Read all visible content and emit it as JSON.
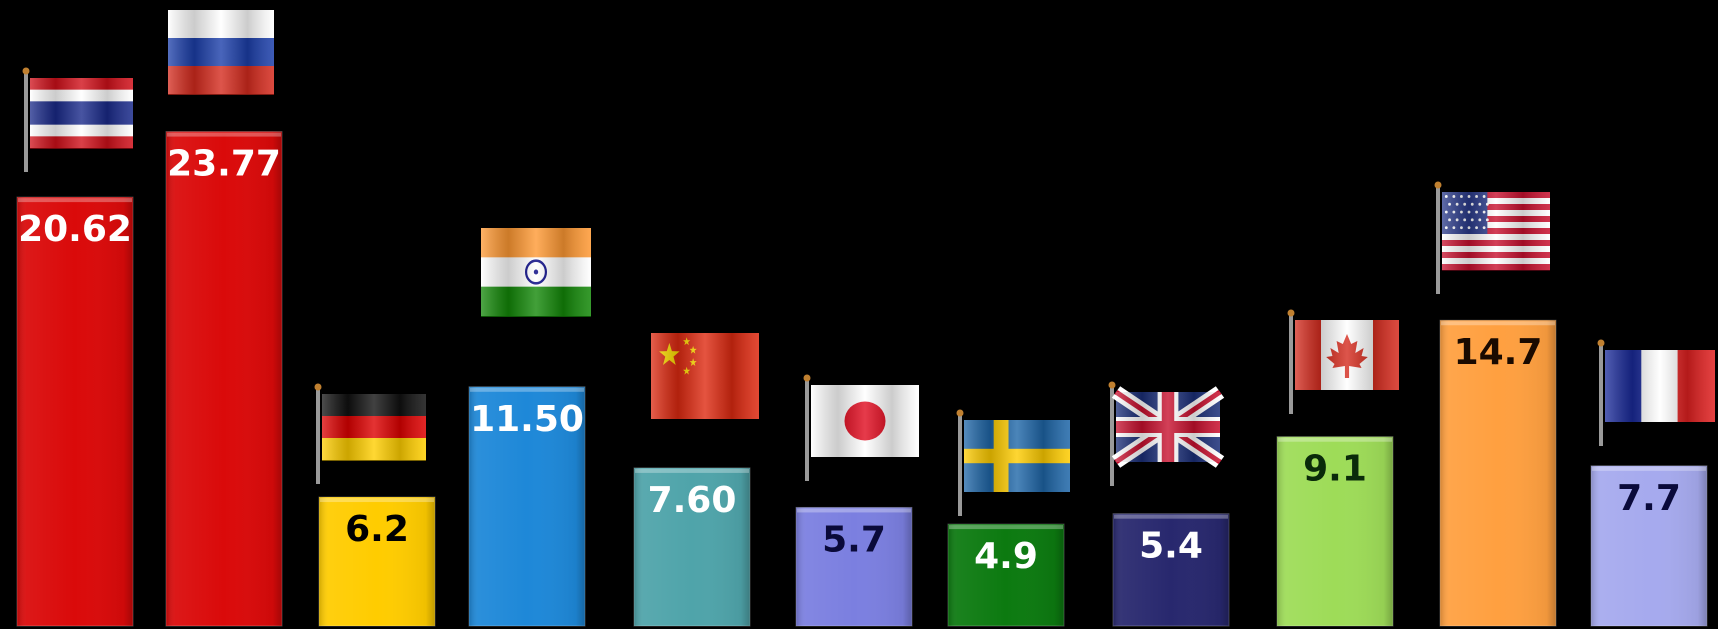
{
  "chart_data": {
    "type": "bar",
    "ylim": [
      0,
      30
    ],
    "grid": false,
    "legend": "none",
    "categories": [
      "Thailand",
      "Russia",
      "Germany",
      "India",
      "China",
      "Japan",
      "Sweden",
      "United Kingdom",
      "Canada",
      "United States",
      "France"
    ],
    "bars": [
      {
        "label": "20.62",
        "value": 20.62,
        "color": "#DA0A0A",
        "label_color": "#FFFFFF",
        "flag": "thailand-flag-icon"
      },
      {
        "label": "23.77",
        "value": 23.77,
        "color": "#DA0A0A",
        "label_color": "#FFFFFF",
        "flag": "russia-flag-icon"
      },
      {
        "label": "6.2",
        "value": 6.2,
        "color": "#FFCC00",
        "label_color": "#000000",
        "flag": "germany-flag-icon"
      },
      {
        "label": "11.50",
        "value": 11.5,
        "color": "#1E88D8",
        "label_color": "#FFFFFF",
        "flag": "india-flag-icon"
      },
      {
        "label": "7.60",
        "value": 7.6,
        "color": "#4FA4AA",
        "label_color": "#FFFFFF",
        "flag": "china-flag-icon"
      },
      {
        "label": "5.7",
        "value": 5.7,
        "color": "#7B7FE0",
        "label_color": "#0A0A3A",
        "flag": "japan-flag-icon"
      },
      {
        "label": "4.9",
        "value": 4.9,
        "color": "#0C7A10",
        "label_color": "#FFFFFF",
        "flag": "sweden-flag-icon"
      },
      {
        "label": "5.4",
        "value": 5.4,
        "color": "#28286E",
        "label_color": "#FFFFFF",
        "flag": "uk-flag-icon"
      },
      {
        "label": "9.1",
        "value": 9.1,
        "color": "#9EDC58",
        "label_color": "#0A2A0A",
        "flag": "canada-flag-icon"
      },
      {
        "label": "14.7",
        "value": 14.7,
        "color": "#FFA040",
        "label_color": "#1A0A00",
        "flag": "usa-flag-icon"
      },
      {
        "label": "7.7",
        "value": 7.7,
        "color": "#A6AAEE",
        "label_color": "#0A0A3A",
        "flag": "france-flag-icon"
      }
    ]
  }
}
